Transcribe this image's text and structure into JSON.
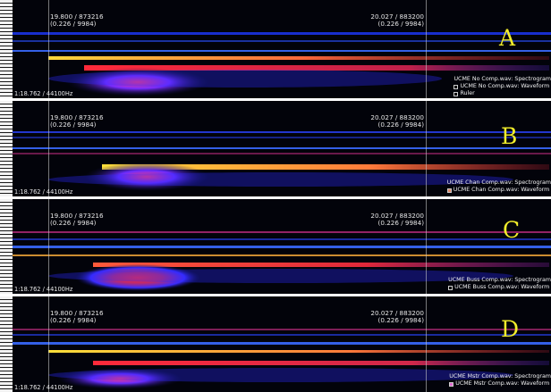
{
  "panels": [
    {
      "letter": "A",
      "cursor1": {
        "pos": "19.800 / 873216",
        "val": "(0.226 / 9984)"
      },
      "cursor2": {
        "pos": "20.027 / 883200",
        "val": "(0.226 / 9984)"
      },
      "samplerate": "1:18.762 / 44100Hz",
      "legend": [
        "UCME No Comp.wav: Spectrogram",
        "UCME No Comp.wav: Waveform",
        "Ruler"
      ]
    },
    {
      "letter": "B",
      "cursor1": {
        "pos": "19.800 / 873216",
        "val": "(0.226 / 9984)"
      },
      "cursor2": {
        "pos": "20.027 / 883200",
        "val": "(0.226 / 9984)"
      },
      "samplerate": "1:18.762 / 44100Hz",
      "legend": [
        "UCME Chan Comp.wav: Spectrogram",
        "UCME Chan Comp.wav: Waveform"
      ]
    },
    {
      "letter": "C",
      "cursor1": {
        "pos": "19.800 / 873216",
        "val": "(0.226 / 9984)"
      },
      "cursor2": {
        "pos": "20.027 / 883200",
        "val": "(0.226 / 9984)"
      },
      "samplerate": "1:18.762 / 44100Hz",
      "legend": [
        "UCME Buss Comp.wav: Spectrogram",
        "UCME Buss Comp.wav: Waveform"
      ]
    },
    {
      "letter": "D",
      "cursor1": {
        "pos": "19.800 / 873216",
        "val": "(0.226 / 9984)"
      },
      "cursor2": {
        "pos": "20.027 / 883200",
        "val": "(0.226 / 9984)"
      },
      "samplerate": "1:18.762 / 44100Hz",
      "legend": [
        "UCME Mstr Comp.wav: Spectrogram",
        "UCME Mstr Comp.wav: Waveform"
      ]
    }
  ],
  "colors": {
    "background": "#02030a",
    "letter": "#f2ee2b",
    "spectrum_hot": "#ffe03a",
    "spectrum_mid": "#e0283a",
    "spectrum_cool": "#2a3cff"
  }
}
